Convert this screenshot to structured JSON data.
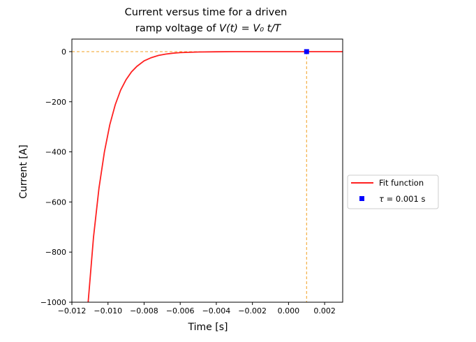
{
  "chart_data": {
    "type": "line",
    "title_line1": "Current versus time for a  driven",
    "title_line2_prefix": "ramp voltage of ",
    "title_line2_math": "V(t) = V₀ t/T",
    "xlabel": "Time [s]",
    "ylabel": "Current [A]",
    "xlim": [
      -0.012,
      0.003
    ],
    "ylim": [
      -1000,
      50
    ],
    "x_ticks": [
      -0.012,
      -0.01,
      -0.008,
      -0.006,
      -0.004,
      -0.002,
      0.0,
      0.002
    ],
    "x_tick_labels": [
      "−0.012",
      "−0.010",
      "−0.008",
      "−0.006",
      "−0.004",
      "−0.002",
      "0.000",
      "0.002"
    ],
    "y_ticks": [
      0,
      -200,
      -400,
      -600,
      -800,
      -1000
    ],
    "y_tick_labels": [
      "0",
      "−200",
      "−400",
      "−600",
      "−800",
      "−1000"
    ],
    "series": [
      {
        "name": "Fit function",
        "color": "#ff2020",
        "x": [
          -0.0111,
          -0.0108,
          -0.0105,
          -0.0102,
          -0.0099,
          -0.0096,
          -0.0093,
          -0.009,
          -0.0087,
          -0.0084,
          -0.008,
          -0.0076,
          -0.0072,
          -0.0068,
          -0.0064,
          -0.006,
          -0.005,
          -0.004,
          -0.003,
          -0.002,
          -0.001,
          0.0,
          0.001,
          0.002,
          0.003
        ],
        "y": [
          -1000,
          -740,
          -545,
          -400,
          -292,
          -212,
          -154,
          -112,
          -81,
          -59,
          -37,
          -24,
          -15.3,
          -9.8,
          -6.3,
          -4.1,
          -1.6,
          -0.6,
          -0.2,
          -0.1,
          0,
          0,
          0,
          0,
          0
        ]
      },
      {
        "name": "τ = 0.001 s",
        "label_symbol": "τ",
        "label_rest": " = 0.001 s",
        "color": "#0000ff",
        "marker": "square",
        "x": [
          0.001
        ],
        "y": [
          0
        ]
      }
    ],
    "reference_lines": {
      "color": "#f0a020",
      "style": "dashed",
      "horizontal_y": 0,
      "vertical_x": 0.001
    },
    "legend_placement": "outside-right",
    "grid": false
  }
}
